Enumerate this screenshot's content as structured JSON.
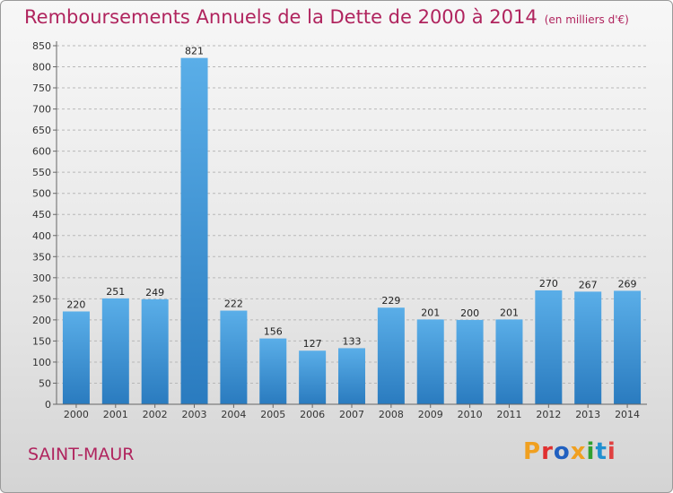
{
  "header": {
    "title": "Remboursements Annuels de la Dette de 2000 à 2014",
    "unit": "(en milliers d'€)"
  },
  "footer": {
    "commune": "SAINT-MAUR",
    "logo": "Proxiti",
    "logo_colors": [
      "#f0a020",
      "#e03030",
      "#2060c0",
      "#f0a020",
      "#30a030",
      "#2090d0",
      "#e04040"
    ]
  },
  "chart_data": {
    "type": "bar",
    "title": "Remboursements Annuels de la Dette de 2000 à 2014",
    "xlabel": "",
    "ylabel": "",
    "categories": [
      "2000",
      "2001",
      "2002",
      "2003",
      "2004",
      "2005",
      "2006",
      "2007",
      "2008",
      "2009",
      "2010",
      "2011",
      "2012",
      "2013",
      "2014"
    ],
    "values": [
      220,
      251,
      249,
      821,
      222,
      156,
      127,
      133,
      229,
      201,
      200,
      201,
      270,
      267,
      269
    ],
    "ylim": [
      0,
      850
    ],
    "yticks": [
      0,
      50,
      100,
      150,
      200,
      250,
      300,
      350,
      400,
      450,
      500,
      550,
      600,
      650,
      700,
      750,
      800,
      850
    ],
    "grid": "horizontal-dashed",
    "bar_color_top": "#5aaee8",
    "bar_color_bottom": "#2a7bbf"
  }
}
